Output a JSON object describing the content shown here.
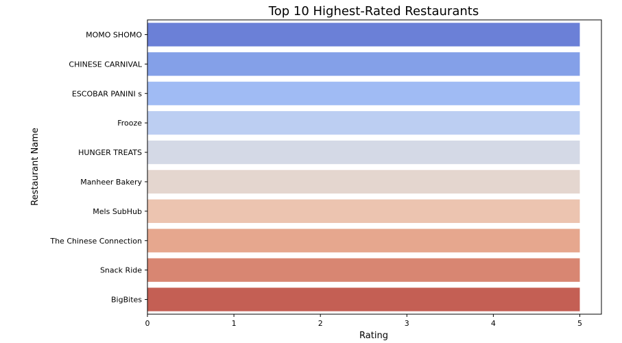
{
  "chart_data": {
    "type": "bar",
    "orientation": "horizontal",
    "title": "Top 10 Highest-Rated Restaurants",
    "xlabel": "Rating",
    "ylabel": "Restaurant Name",
    "categories": [
      "MOMO SHOMO",
      "CHINESE CARNIVAL",
      "ESCOBAR PANINI s",
      "Frooze",
      "HUNGER TREATS",
      "Manheer Bakery",
      "Mels SubHub",
      "The Chinese Connection",
      "Snack Ride",
      "BigBites"
    ],
    "values": [
      5,
      5,
      5,
      5,
      5,
      5,
      5,
      5,
      5,
      5
    ],
    "colors": [
      "#6b80d7",
      "#84a0e8",
      "#a0bbf4",
      "#bccef2",
      "#d4d9e6",
      "#e4d6cf",
      "#ecc4b0",
      "#e6a78e",
      "#d88672",
      "#c45f54"
    ],
    "xlim": [
      0,
      5.25
    ],
    "xticks": [
      0,
      1,
      2,
      3,
      4,
      5
    ],
    "grid": false,
    "legend": "none"
  }
}
